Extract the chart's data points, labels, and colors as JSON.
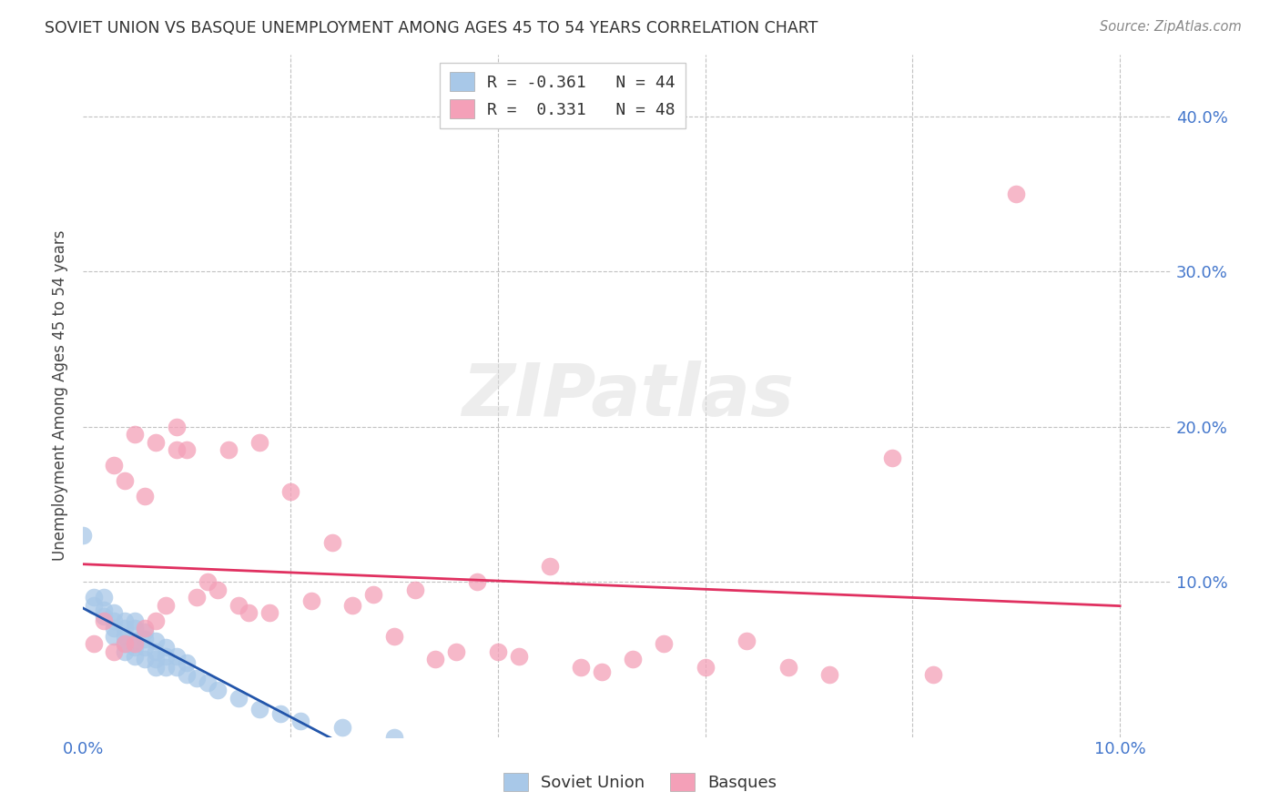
{
  "title": "SOVIET UNION VS BASQUE UNEMPLOYMENT AMONG AGES 45 TO 54 YEARS CORRELATION CHART",
  "source": "Source: ZipAtlas.com",
  "ylabel": "Unemployment Among Ages 45 to 54 years",
  "xlim": [
    0.0,
    0.105
  ],
  "ylim": [
    0.0,
    0.44
  ],
  "x_ticks": [
    0.0,
    0.02,
    0.04,
    0.06,
    0.08,
    0.1
  ],
  "x_tick_labels": [
    "0.0%",
    "",
    "",
    "",
    "",
    "10.0%"
  ],
  "y_ticks": [
    0.0,
    0.1,
    0.2,
    0.3,
    0.4
  ],
  "y_tick_labels": [
    "",
    "10.0%",
    "20.0%",
    "30.0%",
    "40.0%"
  ],
  "soviet_color": "#a8c8e8",
  "basque_color": "#f4a0b8",
  "soviet_line_color": "#2255aa",
  "basque_line_color": "#e03060",
  "legend_label1": "R = -0.361   N = 44",
  "legend_label2": "R =  0.331   N = 48",
  "watermark": "ZIPatlas",
  "soviet_x": [
    0.0,
    0.001,
    0.001,
    0.002,
    0.002,
    0.002,
    0.003,
    0.003,
    0.003,
    0.003,
    0.004,
    0.004,
    0.004,
    0.004,
    0.004,
    0.005,
    0.005,
    0.005,
    0.005,
    0.005,
    0.006,
    0.006,
    0.006,
    0.006,
    0.007,
    0.007,
    0.007,
    0.007,
    0.008,
    0.008,
    0.008,
    0.009,
    0.009,
    0.01,
    0.01,
    0.011,
    0.012,
    0.013,
    0.015,
    0.017,
    0.019,
    0.021,
    0.025,
    0.03
  ],
  "soviet_y": [
    0.13,
    0.09,
    0.085,
    0.09,
    0.082,
    0.078,
    0.08,
    0.075,
    0.07,
    0.065,
    0.075,
    0.07,
    0.065,
    0.06,
    0.055,
    0.075,
    0.07,
    0.062,
    0.058,
    0.052,
    0.068,
    0.063,
    0.058,
    0.05,
    0.062,
    0.055,
    0.05,
    0.045,
    0.058,
    0.052,
    0.045,
    0.052,
    0.045,
    0.048,
    0.04,
    0.038,
    0.035,
    0.03,
    0.025,
    0.018,
    0.015,
    0.01,
    0.006,
    0.0
  ],
  "basque_x": [
    0.001,
    0.002,
    0.003,
    0.003,
    0.004,
    0.004,
    0.005,
    0.005,
    0.006,
    0.006,
    0.007,
    0.007,
    0.008,
    0.009,
    0.009,
    0.01,
    0.011,
    0.012,
    0.013,
    0.014,
    0.015,
    0.016,
    0.017,
    0.018,
    0.02,
    0.022,
    0.024,
    0.026,
    0.028,
    0.03,
    0.032,
    0.034,
    0.036,
    0.038,
    0.04,
    0.042,
    0.045,
    0.048,
    0.05,
    0.053,
    0.056,
    0.06,
    0.064,
    0.068,
    0.072,
    0.078,
    0.082,
    0.09
  ],
  "basque_y": [
    0.06,
    0.075,
    0.055,
    0.175,
    0.06,
    0.165,
    0.06,
    0.195,
    0.07,
    0.155,
    0.075,
    0.19,
    0.085,
    0.2,
    0.185,
    0.185,
    0.09,
    0.1,
    0.095,
    0.185,
    0.085,
    0.08,
    0.19,
    0.08,
    0.158,
    0.088,
    0.125,
    0.085,
    0.092,
    0.065,
    0.095,
    0.05,
    0.055,
    0.1,
    0.055,
    0.052,
    0.11,
    0.045,
    0.042,
    0.05,
    0.06,
    0.045,
    0.062,
    0.045,
    0.04,
    0.18,
    0.04,
    0.35
  ]
}
